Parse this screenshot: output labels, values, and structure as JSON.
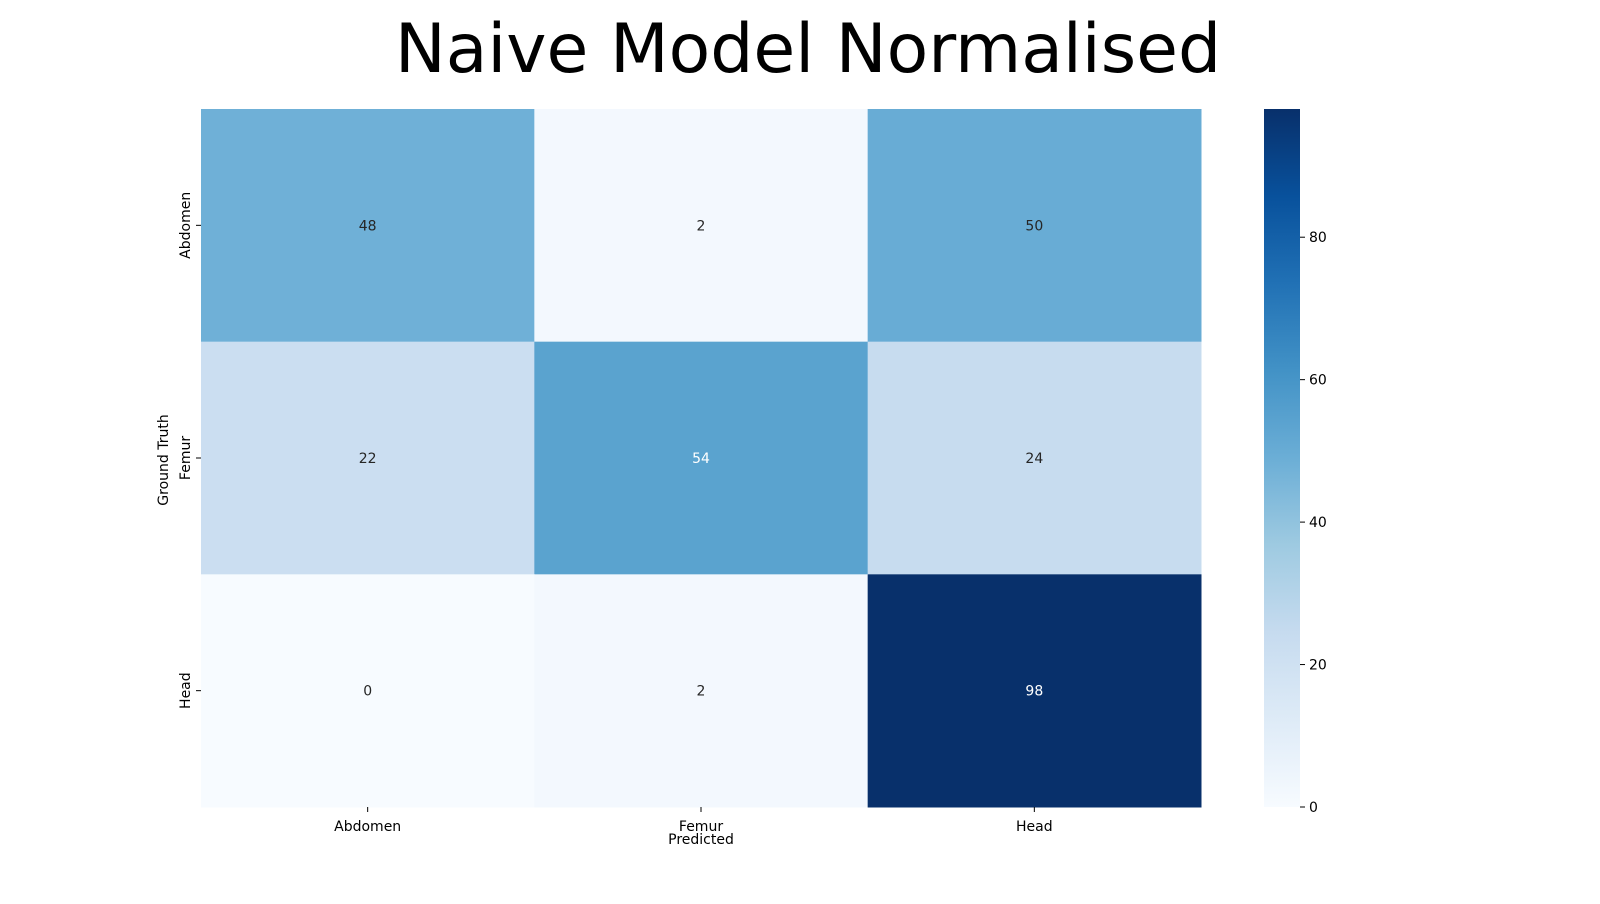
{
  "chart_data": {
    "type": "heatmap",
    "title": "Naive Model Normalised",
    "xlabel": "Predicted",
    "ylabel": "Ground Truth",
    "x_categories": [
      "Abdomen",
      "Femur",
      "Head"
    ],
    "y_categories": [
      "Abdomen",
      "Femur",
      "Head"
    ],
    "values": [
      [
        48,
        2,
        50
      ],
      [
        22,
        54,
        24
      ],
      [
        0,
        2,
        98
      ]
    ],
    "colormap": "Blues",
    "color_range": [
      0,
      98
    ],
    "colorbar_ticks": [
      0,
      20,
      40,
      60,
      80
    ],
    "colorbar_tick_labels": [
      "0",
      "20",
      "40",
      "60",
      "80"
    ],
    "grid": false,
    "legend": "colorbar-right"
  }
}
